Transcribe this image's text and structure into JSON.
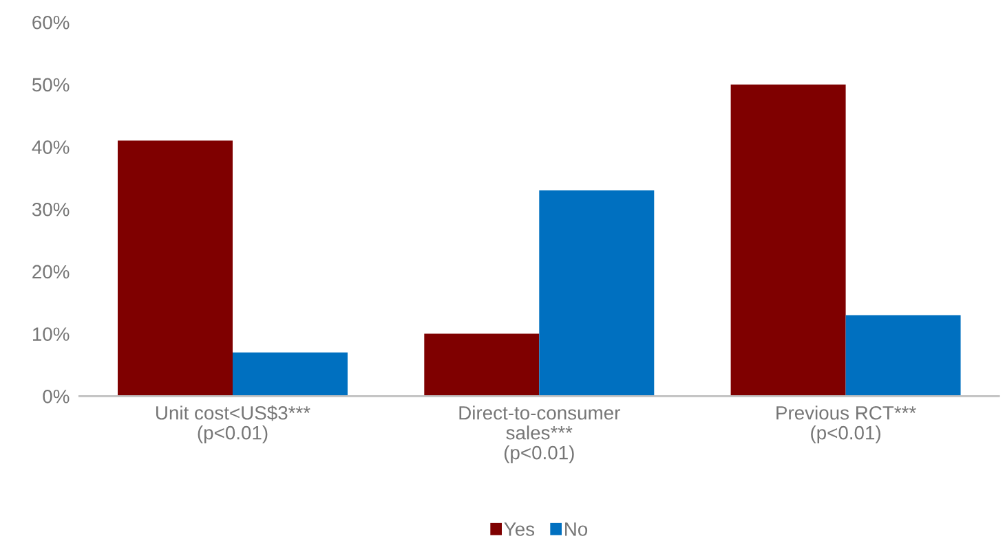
{
  "chart_data": {
    "type": "bar",
    "categories": [
      "Unit cost<US$3***\n(p<0.01)",
      "Direct-to-consumer\nsales***\n(p<0.01)",
      "Previous RCT***\n(p<0.01)"
    ],
    "series": [
      {
        "name": "Yes",
        "color": "#7f0000",
        "values": [
          41,
          10,
          50
        ]
      },
      {
        "name": "No",
        "color": "#0070c0",
        "values": [
          7,
          33,
          13
        ]
      }
    ],
    "ylim": [
      0,
      60
    ],
    "yticks": [
      {
        "value": 0,
        "label": "0%"
      },
      {
        "value": 10,
        "label": "10%"
      },
      {
        "value": 20,
        "label": "20%"
      },
      {
        "value": 30,
        "label": "30%"
      },
      {
        "value": 40,
        "label": "40%"
      },
      {
        "value": 50,
        "label": "50%"
      },
      {
        "value": 60,
        "label": "60%"
      }
    ],
    "grid": false,
    "legend": "bottom"
  }
}
